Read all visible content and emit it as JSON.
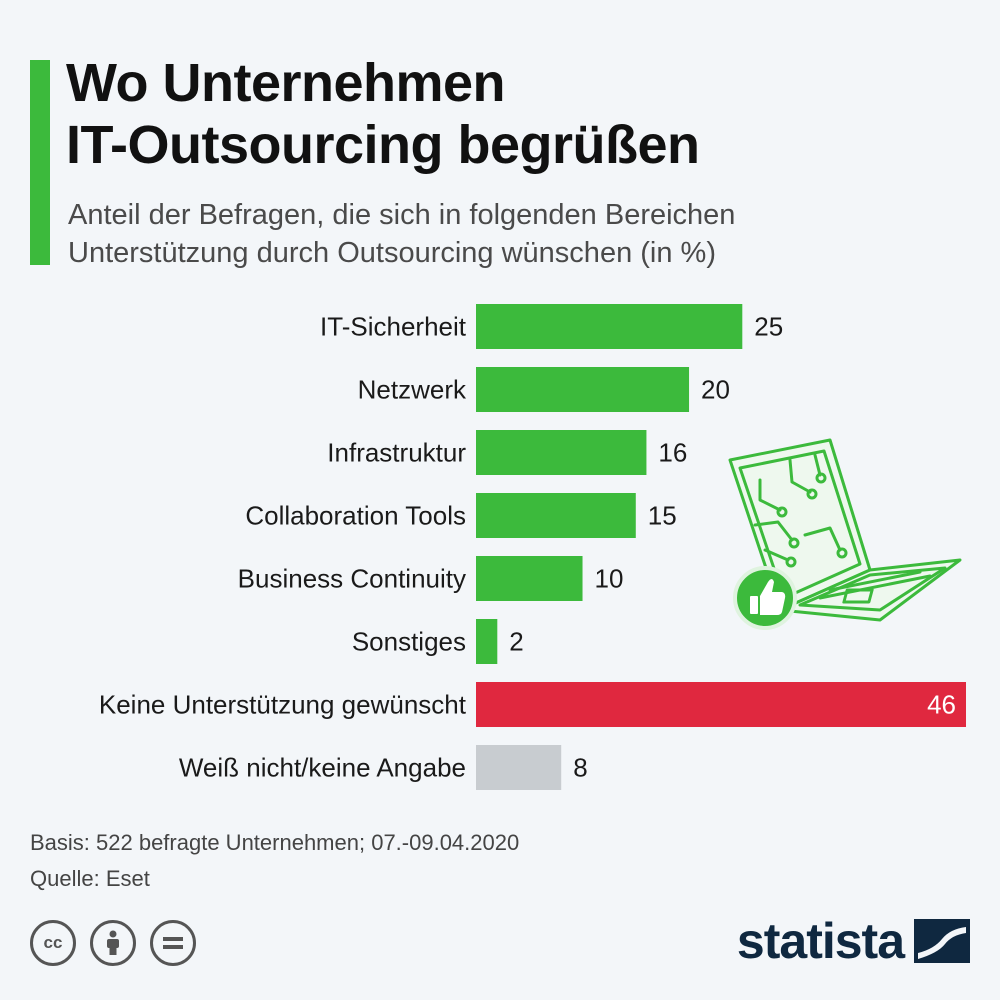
{
  "header": {
    "title_line1": "Wo Unternehmen",
    "title_line2": "IT-Outsourcing begrüßen",
    "subtitle_line1": "Anteil der Befragen, die sich in folgenden Bereichen",
    "subtitle_line2": "Unterstützung durch Outsourcing wünschen (in %)"
  },
  "chart_data": {
    "type": "bar",
    "orientation": "horizontal",
    "categories": [
      "IT-Sicherheit",
      "Netzwerk",
      "Infrastruktur",
      "Collaboration Tools",
      "Business Continuity",
      "Sonstiges",
      "Keine Unterstützung gewünscht",
      "Weiß nicht/keine Angabe"
    ],
    "values": [
      25,
      20,
      16,
      15,
      10,
      2,
      46,
      8
    ],
    "bar_colors": [
      "#3cba3c",
      "#3cba3c",
      "#3cba3c",
      "#3cba3c",
      "#3cba3c",
      "#3cba3c",
      "#e0283f",
      "#c8ccd0"
    ],
    "xlim": [
      0,
      46
    ],
    "grid": false,
    "data_labels": true
  },
  "colors": {
    "accent": "#3cba3c",
    "negative": "#e0283f",
    "neutral": "#c8ccd0",
    "brand": "#0f2840"
  },
  "footer": {
    "basis": "Basis: 522 befragte Unternehmen; 07.-09.04.2020",
    "source": "Quelle: Eset"
  },
  "license_icons": [
    "cc-icon",
    "attribution-icon",
    "no-derivatives-icon"
  ],
  "brand": {
    "name": "statista"
  }
}
